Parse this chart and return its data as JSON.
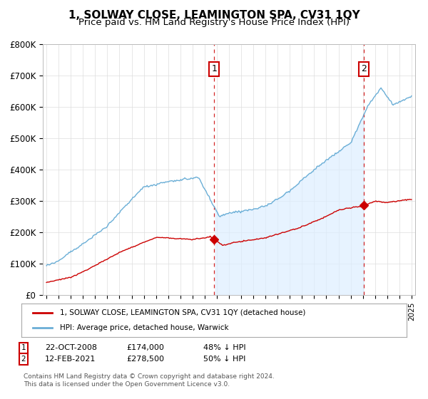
{
  "title": "1, SOLWAY CLOSE, LEAMINGTON SPA, CV31 1QY",
  "subtitle": "Price paid vs. HM Land Registry's House Price Index (HPI)",
  "ylim": [
    0,
    800000
  ],
  "yticks": [
    0,
    100000,
    200000,
    300000,
    400000,
    500000,
    600000,
    700000,
    800000
  ],
  "ytick_labels": [
    "£0",
    "£100K",
    "£200K",
    "£300K",
    "£400K",
    "£500K",
    "£600K",
    "£700K",
    "£800K"
  ],
  "hpi_color": "#6aaed6",
  "hpi_fill_color": "#ddeeff",
  "price_color": "#cc0000",
  "purchase1_year": 2008.79,
  "purchase2_year": 2021.08,
  "purchase1_price": 174000,
  "purchase2_price": 278500,
  "legend_entry1": "1, SOLWAY CLOSE, LEAMINGTON SPA, CV31 1QY (detached house)",
  "legend_entry2": "HPI: Average price, detached house, Warwick",
  "footer": "Contains HM Land Registry data © Crown copyright and database right 2024.\nThis data is licensed under the Open Government Licence v3.0.",
  "bg_color": "#ffffff",
  "grid_color": "#dddddd",
  "title_fontsize": 11,
  "subtitle_fontsize": 9.5
}
